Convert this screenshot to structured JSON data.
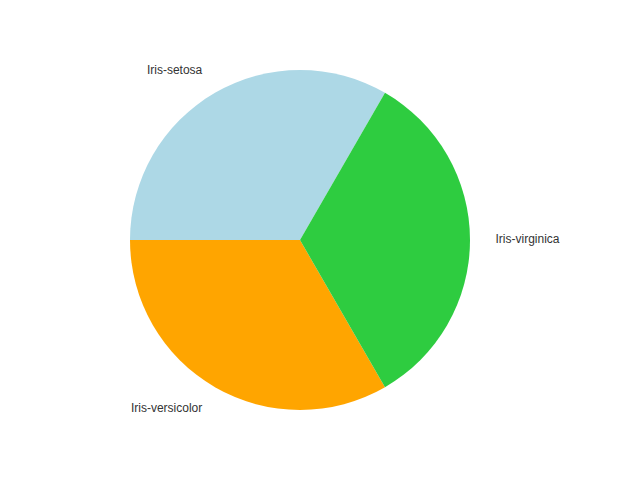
{
  "chart_data": {
    "type": "pie",
    "categories": [
      "Iris-setosa",
      "Iris-versicolor",
      "Iris-virginica"
    ],
    "values": [
      50,
      50,
      50
    ],
    "colors": [
      "#add8e6",
      "#ffa500",
      "#2ecc40"
    ]
  }
}
